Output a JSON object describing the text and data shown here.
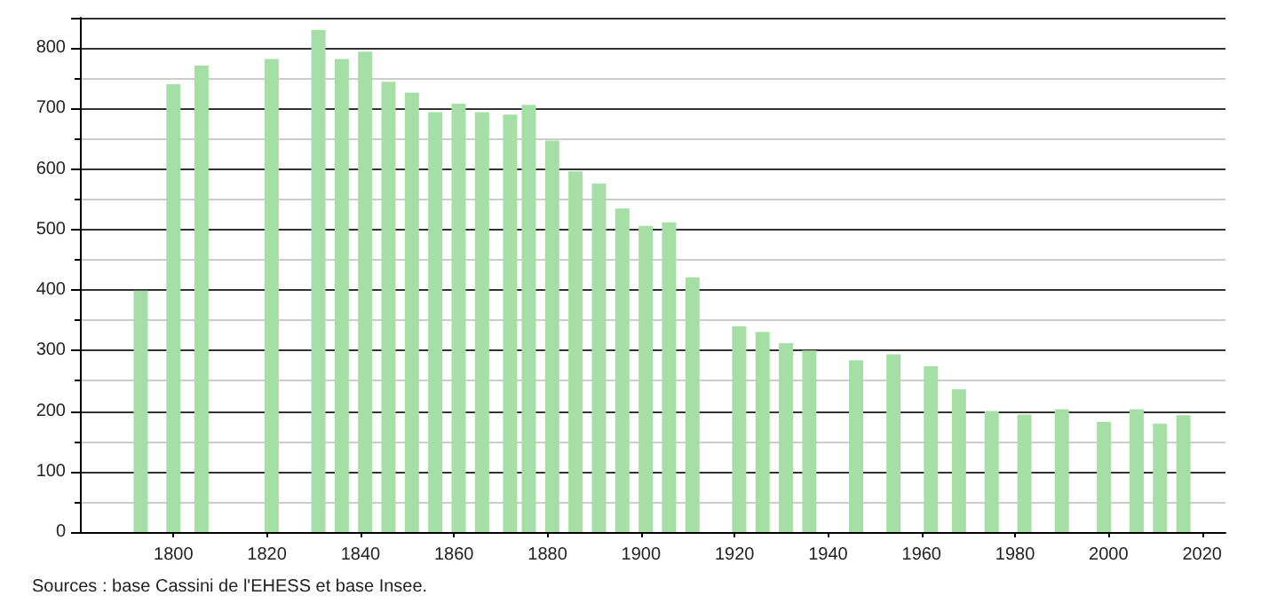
{
  "chart_data": {
    "type": "bar",
    "x": [
      1793,
      1800,
      1806,
      1821,
      1831,
      1836,
      1841,
      1846,
      1851,
      1856,
      1861,
      1866,
      1872,
      1876,
      1881,
      1886,
      1891,
      1896,
      1901,
      1906,
      1911,
      1921,
      1926,
      1931,
      1936,
      1946,
      1954,
      1962,
      1968,
      1975,
      1982,
      1990,
      1999,
      2006,
      2011,
      2016
    ],
    "values": [
      399,
      740,
      771,
      782,
      830,
      782,
      794,
      744,
      726,
      694,
      708,
      694,
      690,
      706,
      647,
      596,
      576,
      535,
      506,
      512,
      421,
      340,
      331,
      312,
      300,
      284,
      294,
      274,
      236,
      200,
      194,
      203,
      182,
      203,
      179,
      193
    ],
    "color": "#a6dfa6",
    "xlim": [
      1780,
      2025
    ],
    "xticks": [
      1800,
      1820,
      1840,
      1860,
      1880,
      1900,
      1920,
      1940,
      1960,
      1980,
      2000,
      2020
    ],
    "ylim": [
      0,
      850
    ],
    "yticks": [
      0,
      100,
      200,
      300,
      400,
      500,
      600,
      700,
      800
    ],
    "grid": "y",
    "annotations": [
      "Sources : base Cassini de l'EHESS et base Insee."
    ]
  }
}
